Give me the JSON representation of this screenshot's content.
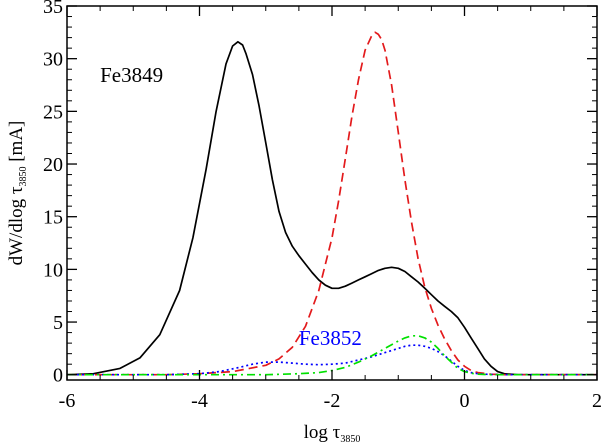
{
  "chart_data": {
    "type": "line",
    "xlabel": {
      "main": "log τ",
      "subscript": "3850"
    },
    "ylabel": {
      "main": "dW/dlog τ",
      "subscript": "3850",
      "unit": " [mA]"
    },
    "xlim": [
      -6,
      2
    ],
    "ylim": [
      -0.5,
      35
    ],
    "x_ticks": [
      -6,
      -4,
      -2,
      0,
      2
    ],
    "y_ticks": [
      0,
      5,
      10,
      15,
      20,
      25,
      30,
      35
    ],
    "grid": false,
    "annotations": [
      {
        "text": "Fe3849",
        "x": -5.5,
        "y": 27.8,
        "color": "#000000"
      },
      {
        "text": "Fe3852",
        "x": -2.5,
        "y": 2.8,
        "color": "#0000ff"
      }
    ],
    "series": [
      {
        "color": "#000000",
        "dash": "solid",
        "x": [
          -6.0,
          -5.6,
          -5.2,
          -4.9,
          -4.6,
          -4.3,
          -4.1,
          -3.9,
          -3.75,
          -3.6,
          -3.5,
          -3.42,
          -3.35,
          -3.3,
          -3.2,
          -3.1,
          -3.0,
          -2.9,
          -2.8,
          -2.7,
          -2.6,
          -2.5,
          -2.4,
          -2.3,
          -2.2,
          -2.1,
          -2.0,
          -1.9,
          -1.8,
          -1.7,
          -1.6,
          -1.5,
          -1.4,
          -1.3,
          -1.2,
          -1.1,
          -1.0,
          -0.9,
          -0.8,
          -0.7,
          -0.6,
          -0.5,
          -0.4,
          -0.3,
          -0.2,
          -0.1,
          0.0,
          0.1,
          0.2,
          0.3,
          0.4,
          0.5,
          0.6,
          0.8,
          1.0,
          1.5,
          2.0
        ],
        "y": [
          0.0,
          0.1,
          0.6,
          1.6,
          3.8,
          8.0,
          13.0,
          19.5,
          25.0,
          29.5,
          31.2,
          31.6,
          31.3,
          30.5,
          28.5,
          25.5,
          22.0,
          18.5,
          15.5,
          13.5,
          12.2,
          11.3,
          10.5,
          9.7,
          9.0,
          8.5,
          8.2,
          8.2,
          8.4,
          8.7,
          9.0,
          9.3,
          9.6,
          9.9,
          10.1,
          10.2,
          10.1,
          9.8,
          9.3,
          8.8,
          8.2,
          7.6,
          7.0,
          6.5,
          6.0,
          5.4,
          4.5,
          3.5,
          2.5,
          1.5,
          0.8,
          0.3,
          0.1,
          0.0,
          0.0,
          0.0,
          0.0
        ]
      },
      {
        "color": "#e31a1c",
        "dash": "dashed",
        "x": [
          -6.0,
          -4.5,
          -4.0,
          -3.5,
          -3.0,
          -2.8,
          -2.6,
          -2.4,
          -2.2,
          -2.0,
          -1.9,
          -1.8,
          -1.7,
          -1.6,
          -1.5,
          -1.4,
          -1.35,
          -1.3,
          -1.25,
          -1.2,
          -1.1,
          -1.0,
          -0.9,
          -0.8,
          -0.7,
          -0.6,
          -0.5,
          -0.4,
          -0.3,
          -0.2,
          -0.1,
          0.0,
          0.1,
          0.2,
          0.4,
          0.6,
          1.0,
          2.0
        ],
        "y": [
          0.0,
          0.0,
          0.1,
          0.3,
          0.9,
          1.5,
          2.6,
          4.6,
          8.0,
          13.0,
          16.5,
          20.5,
          24.5,
          28.0,
          30.8,
          32.2,
          32.5,
          32.3,
          31.8,
          30.8,
          27.5,
          23.0,
          18.5,
          14.5,
          11.0,
          8.3,
          6.3,
          4.7,
          3.4,
          2.3,
          1.4,
          0.8,
          0.4,
          0.2,
          0.05,
          0.0,
          0.0,
          0.0
        ]
      },
      {
        "color": "#0000ff",
        "dash": "dotted",
        "x": [
          -6.0,
          -5.0,
          -4.5,
          -4.0,
          -3.7,
          -3.4,
          -3.2,
          -3.0,
          -2.8,
          -2.6,
          -2.4,
          -2.2,
          -2.0,
          -1.8,
          -1.6,
          -1.4,
          -1.2,
          -1.0,
          -0.9,
          -0.8,
          -0.7,
          -0.6,
          -0.5,
          -0.4,
          -0.3,
          -0.2,
          -0.1,
          0.0,
          0.1,
          0.2,
          0.4,
          0.6,
          1.0,
          2.0
        ],
        "y": [
          0.0,
          0.0,
          0.0,
          0.1,
          0.3,
          0.7,
          1.0,
          1.2,
          1.2,
          1.1,
          1.0,
          0.95,
          1.0,
          1.1,
          1.4,
          1.7,
          2.1,
          2.5,
          2.7,
          2.8,
          2.8,
          2.7,
          2.5,
          2.2,
          1.8,
          1.3,
          0.8,
          0.4,
          0.2,
          0.1,
          0.02,
          0.0,
          0.0,
          0.0
        ]
      },
      {
        "color": "#00e000",
        "dash": "dashdot",
        "x": [
          -6.0,
          -4.0,
          -3.0,
          -2.5,
          -2.2,
          -2.0,
          -1.8,
          -1.6,
          -1.4,
          -1.2,
          -1.0,
          -0.9,
          -0.8,
          -0.7,
          -0.6,
          -0.5,
          -0.4,
          -0.3,
          -0.2,
          -0.1,
          0.0,
          0.1,
          0.2,
          0.4,
          0.6,
          1.0,
          2.0
        ],
        "y": [
          0.0,
          0.0,
          0.0,
          0.1,
          0.2,
          0.4,
          0.7,
          1.2,
          1.8,
          2.5,
          3.2,
          3.5,
          3.7,
          3.7,
          3.5,
          3.1,
          2.5,
          1.8,
          1.2,
          0.6,
          0.3,
          0.15,
          0.05,
          0.0,
          0.0,
          0.0,
          0.0
        ]
      }
    ]
  }
}
